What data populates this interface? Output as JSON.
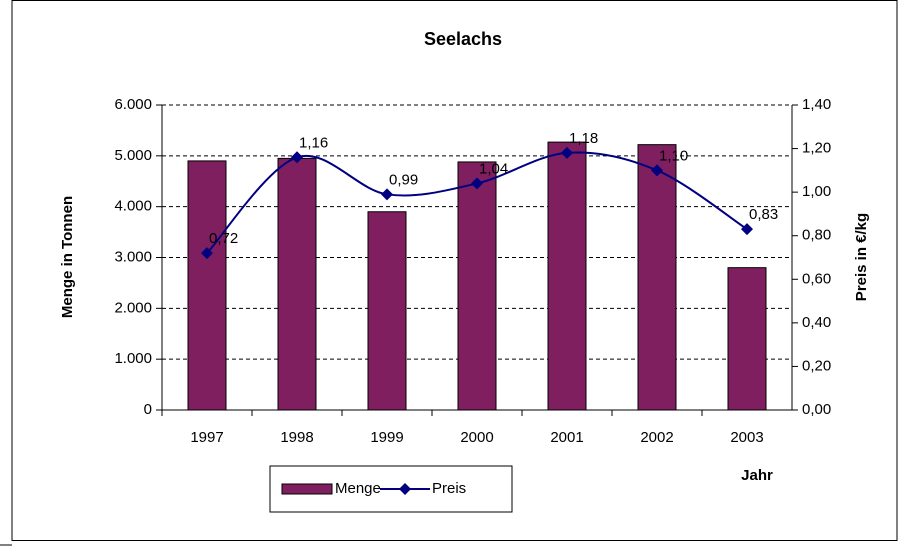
{
  "chart_data": {
    "type": "bar-line",
    "title": "Seelachs",
    "categories": [
      "1997",
      "1998",
      "1999",
      "2000",
      "2001",
      "2002",
      "2003"
    ],
    "series": [
      {
        "name": "Menge",
        "type": "bar",
        "color": "#7f1f5f",
        "values": [
          4900,
          4950,
          3900,
          4880,
          5270,
          5220,
          2800
        ]
      },
      {
        "name": "Preis",
        "type": "line",
        "axis": "y2",
        "color": "#000080",
        "values": [
          0.72,
          1.16,
          0.99,
          1.04,
          1.18,
          1.1,
          0.83
        ],
        "value_labels": [
          "0,72",
          "1,16",
          "0,99",
          "1,04",
          "1,18",
          "1,10",
          "0,83"
        ]
      }
    ],
    "ylabel": "Menge in Tonnen",
    "y2label": "Preis in €/kg",
    "xlabel": "Jahr",
    "ylim": [
      0,
      6000
    ],
    "yticks": [
      0,
      {
        "value": 1000,
        "label": "1.000"
      },
      {
        "value": 2000,
        "label": "2.000"
      },
      {
        "value": 3000,
        "label": "3.000"
      },
      {
        "value": 4000,
        "label": "4.000"
      },
      {
        "value": 5000,
        "label": "5.000"
      },
      {
        "value": 6000,
        "label": "6.000"
      }
    ],
    "y2lim": [
      0,
      1.4
    ],
    "y2ticks": [
      {
        "value": 0,
        "label": "0,00"
      },
      {
        "value": 0.2,
        "label": "0,20"
      },
      {
        "value": 0.4,
        "label": "0,40"
      },
      {
        "value": 0.6,
        "label": "0,60"
      },
      {
        "value": 0.8,
        "label": "0,80"
      },
      {
        "value": 1.0,
        "label": "1,00"
      },
      {
        "value": 1.2,
        "label": "1,20"
      },
      {
        "value": 1.4,
        "label": "1,40"
      }
    ],
    "grid": true,
    "legend": "bottom"
  }
}
